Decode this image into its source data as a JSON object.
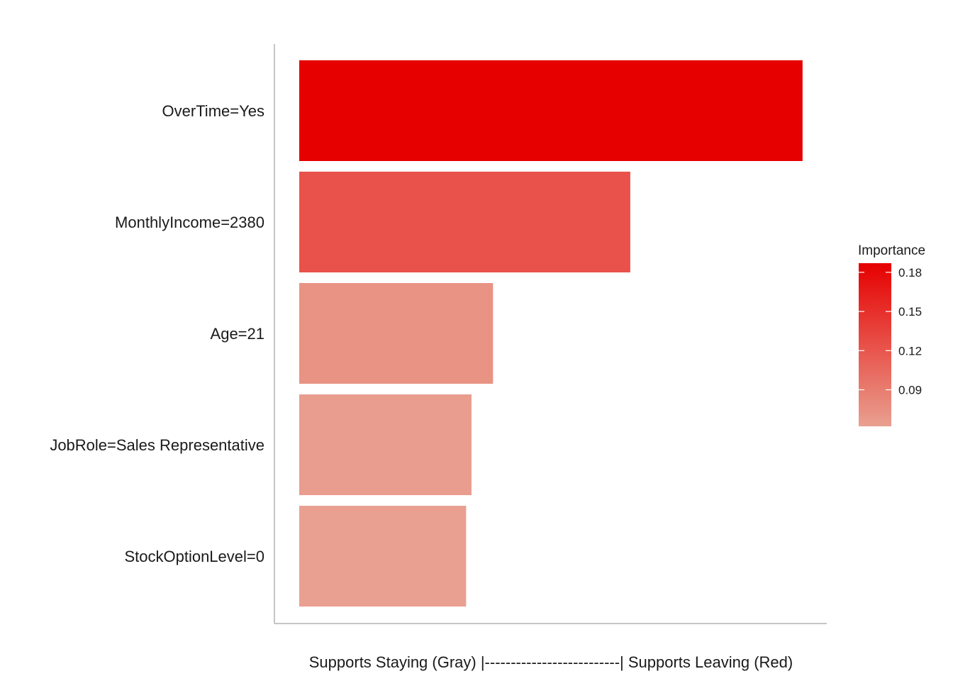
{
  "chart_data": {
    "type": "bar",
    "orientation": "horizontal",
    "categories": [
      "OverTime=Yes",
      "MonthlyIncome=2380",
      "Age=21",
      "JobRole=Sales Representative",
      "StockOptionLevel=0"
    ],
    "values": [
      0.187,
      0.123,
      0.072,
      0.064,
      0.062
    ],
    "xlabel": "Supports Staying (Gray) |--------------------------| Supports Leaving (Red)",
    "ylabel": "",
    "xlim": [
      0,
      0.196
    ],
    "grid": false,
    "legend": {
      "title": "Importance",
      "position": "right",
      "ticks": [
        "0.18",
        "0.15",
        "0.12",
        "0.09"
      ],
      "tick_values": [
        0.18,
        0.15,
        0.12,
        0.09
      ],
      "range": [
        0.062,
        0.187
      ],
      "low_color": "#E9A090",
      "high_color": "#E60000"
    }
  }
}
